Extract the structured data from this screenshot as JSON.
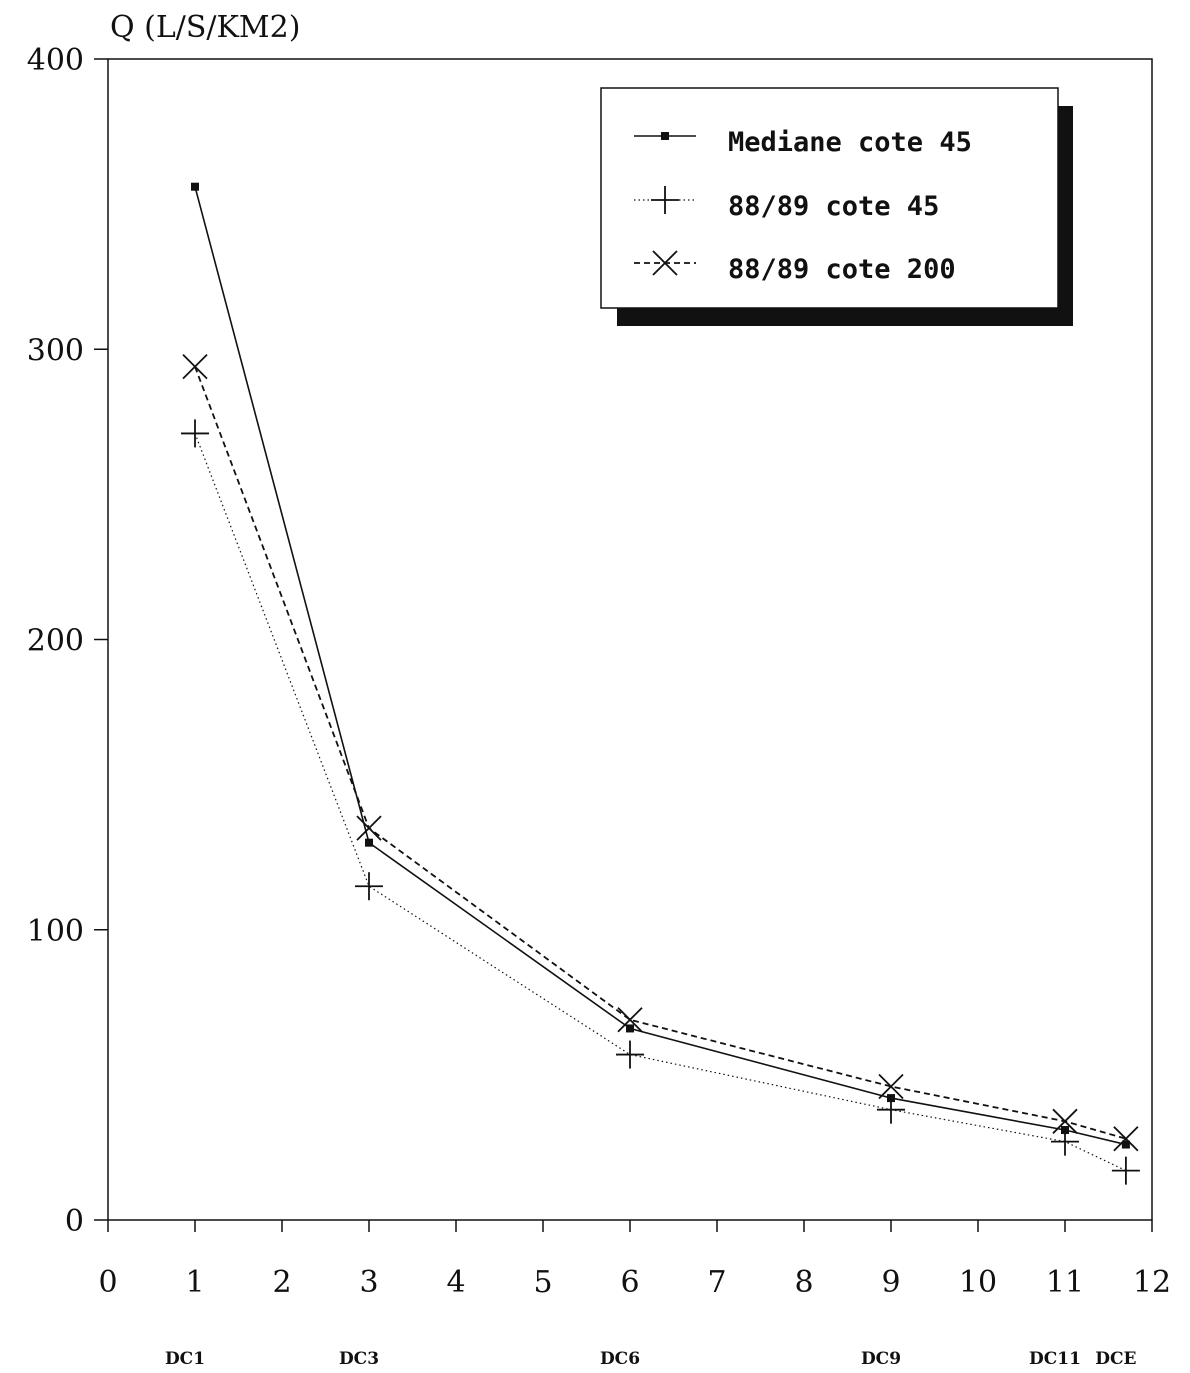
{
  "chart_data": {
    "type": "line",
    "ylabel": "Q (L/S/KM2)",
    "xlabel": "",
    "xlim": [
      0,
      12
    ],
    "ylim": [
      0,
      400
    ],
    "x_ticks": [
      "0",
      "1",
      "2",
      "3",
      "4",
      "5",
      "6",
      "7",
      "8",
      "9",
      "10",
      "11",
      "12"
    ],
    "y_ticks": [
      "0",
      "100",
      "200",
      "300",
      "400"
    ],
    "grid": false,
    "legend_position": "top-right",
    "stations": [
      {
        "x": 1,
        "label": "DC1"
      },
      {
        "x": 3,
        "label": "DC3"
      },
      {
        "x": 6,
        "label": "DC6"
      },
      {
        "x": 9,
        "label": "DC9"
      },
      {
        "x": 11,
        "label": "DC11"
      },
      {
        "x": 11.7,
        "label": "DCE"
      }
    ],
    "x": [
      1,
      3,
      6,
      9,
      11,
      11.7
    ],
    "series": [
      {
        "name": "Mediane cote 45",
        "values": [
          356,
          130,
          66,
          42,
          31,
          26
        ],
        "marker": "square",
        "line": "solid"
      },
      {
        "name": "88/89 cote 45",
        "values": [
          271,
          115,
          57,
          38,
          27,
          17
        ],
        "marker": "plus",
        "line": "dotted"
      },
      {
        "name": "88/89 cote 200",
        "values": [
          294,
          135,
          69,
          46,
          34,
          28
        ],
        "marker": "x",
        "line": "dashed"
      }
    ]
  }
}
